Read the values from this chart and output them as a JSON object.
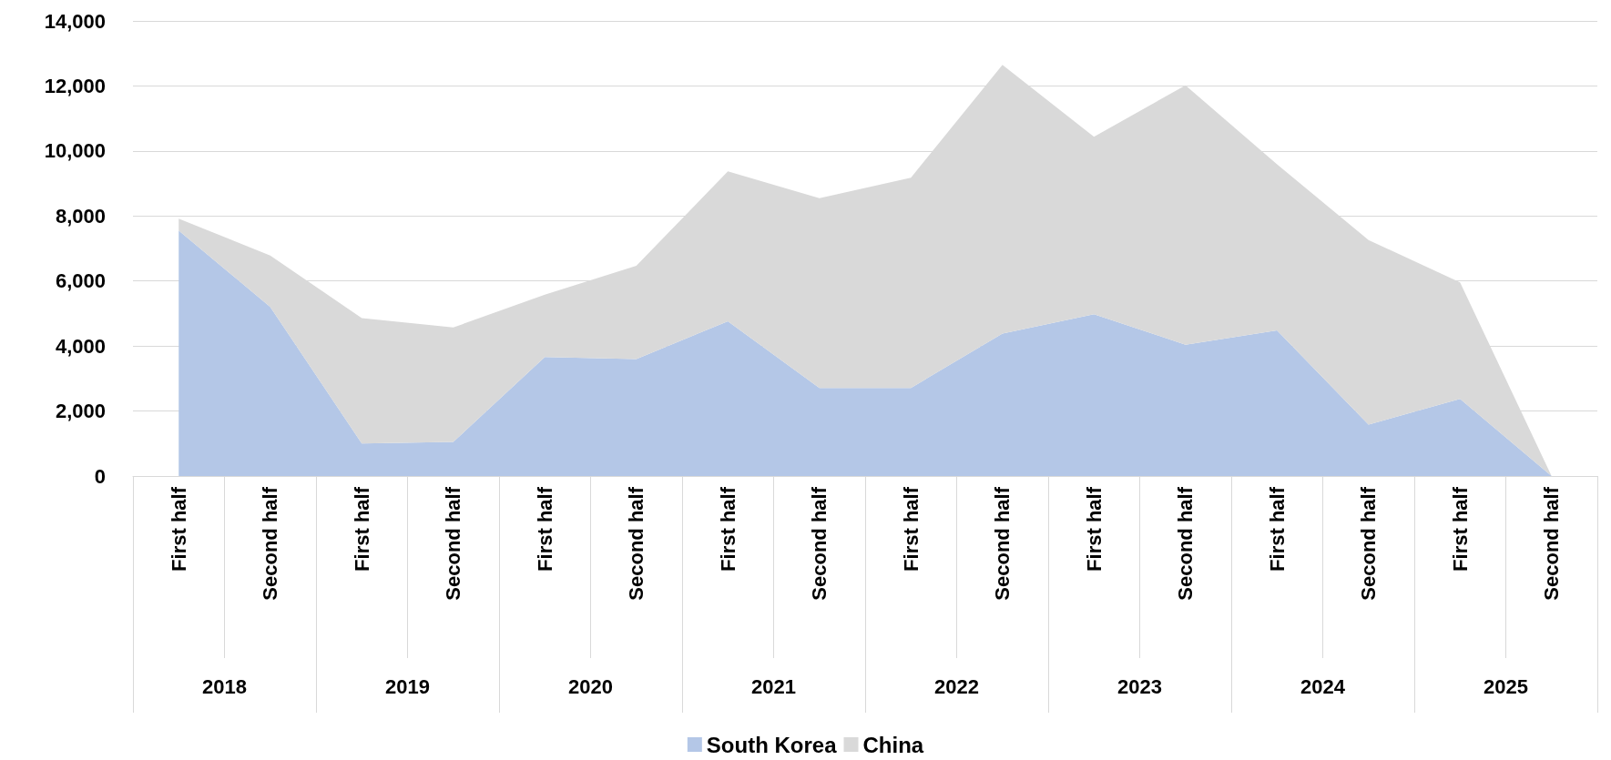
{
  "chart_data": {
    "type": "area",
    "stacked": true,
    "categories": [
      "First half",
      "Second half",
      "First half",
      "Second half",
      "First half",
      "Second half",
      "First half",
      "Second half",
      "First half",
      "Second half",
      "First half",
      "Second half",
      "First half",
      "Second half",
      "First half",
      "Second half"
    ],
    "annotations": [
      "2018",
      "2019",
      "2020",
      "2021",
      "2022",
      "2023",
      "2024",
      "2025"
    ],
    "series": [
      {
        "name": "South Korea",
        "color": "#b4c7e7",
        "values": [
          7550,
          5200,
          1000,
          1050,
          3660,
          3600,
          4760,
          2710,
          2710,
          4380,
          4980,
          4040,
          4480,
          1580,
          2370,
          0
        ]
      },
      {
        "name": "China",
        "color": "#d9d9d9",
        "values": [
          370,
          1580,
          3860,
          3520,
          1920,
          2870,
          4610,
          5840,
          6470,
          8270,
          5460,
          7980,
          5110,
          5680,
          3590,
          0
        ]
      }
    ],
    "ylim": [
      0,
      14000
    ],
    "yticks": [
      {
        "value": 0,
        "label": "0"
      },
      {
        "value": 2000,
        "label": "2,000"
      },
      {
        "value": 4000,
        "label": "4,000"
      },
      {
        "value": 6000,
        "label": "6,000"
      },
      {
        "value": 8000,
        "label": "8,000"
      },
      {
        "value": 10000,
        "label": "10,000"
      },
      {
        "value": 12000,
        "label": "12,000"
      },
      {
        "value": 14000,
        "label": "14,000"
      }
    ],
    "grid": "y",
    "legend": "bottom"
  }
}
